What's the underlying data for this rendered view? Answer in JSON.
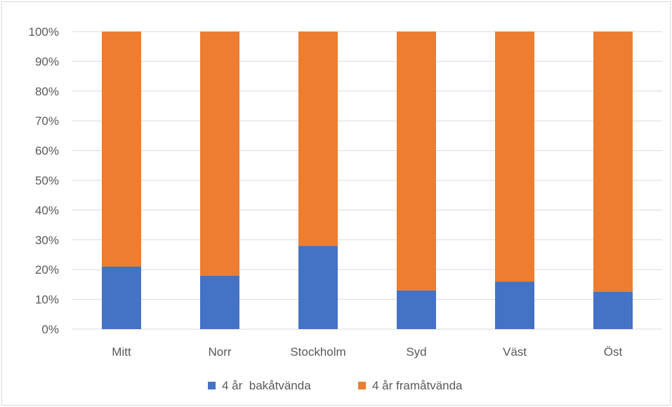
{
  "chart_data": {
    "type": "bar",
    "stacked": true,
    "percent_stacked": true,
    "categories": [
      "Mitt",
      "Norr",
      "Stockholm",
      "Syd",
      "Väst",
      "Öst"
    ],
    "series": [
      {
        "name": "4 år  bakåtvända",
        "color": "#4472C4",
        "values": [
          21,
          18,
          28,
          13,
          16,
          12.5
        ]
      },
      {
        "name": "4 år framåtvända",
        "color": "#ED7D31",
        "values": [
          79,
          82,
          72,
          87,
          84,
          87.5
        ]
      }
    ],
    "y_ticks": [
      "0%",
      "10%",
      "20%",
      "30%",
      "40%",
      "50%",
      "60%",
      "70%",
      "80%",
      "90%",
      "100%"
    ],
    "ylim": [
      0,
      100
    ],
    "grid": true,
    "legend_position": "bottom",
    "title": "",
    "xlabel": "",
    "ylabel": ""
  }
}
